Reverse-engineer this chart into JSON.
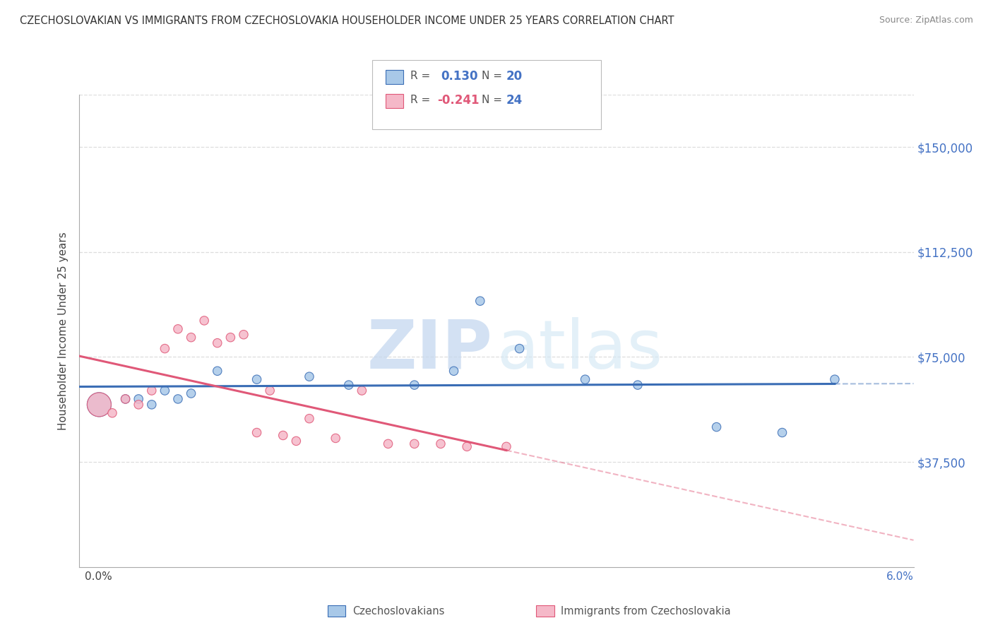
{
  "title": "CZECHOSLOVAKIAN VS IMMIGRANTS FROM CZECHOSLOVAKIA HOUSEHOLDER INCOME UNDER 25 YEARS CORRELATION CHART",
  "source": "Source: ZipAtlas.com",
  "ylabel": "Householder Income Under 25 years",
  "ytick_labels": [
    "$37,500",
    "$75,000",
    "$112,500",
    "$150,000"
  ],
  "ytick_values": [
    37500,
    75000,
    112500,
    150000
  ],
  "ymin": 0,
  "ymax": 168750,
  "xmin": -0.0005,
  "xmax": 0.063,
  "blue_R": 0.13,
  "blue_N": 20,
  "pink_R": -0.241,
  "pink_N": 24,
  "blue_scatter_x": [
    0.001,
    0.003,
    0.004,
    0.005,
    0.006,
    0.007,
    0.008,
    0.01,
    0.013,
    0.017,
    0.02,
    0.025,
    0.028,
    0.03,
    0.033,
    0.038,
    0.042,
    0.048,
    0.053,
    0.057
  ],
  "blue_scatter_y": [
    58000,
    60000,
    60000,
    58000,
    63000,
    60000,
    62000,
    70000,
    67000,
    68000,
    65000,
    65000,
    70000,
    95000,
    78000,
    67000,
    65000,
    50000,
    48000,
    67000
  ],
  "blue_scatter_size": [
    600,
    80,
    80,
    80,
    80,
    80,
    80,
    80,
    80,
    80,
    80,
    80,
    80,
    80,
    80,
    80,
    80,
    80,
    80,
    80
  ],
  "pink_scatter_x": [
    0.001,
    0.002,
    0.003,
    0.004,
    0.005,
    0.006,
    0.007,
    0.008,
    0.009,
    0.01,
    0.011,
    0.012,
    0.013,
    0.014,
    0.015,
    0.016,
    0.017,
    0.019,
    0.021,
    0.023,
    0.025,
    0.027,
    0.029,
    0.032
  ],
  "pink_scatter_y": [
    58000,
    55000,
    60000,
    58000,
    63000,
    78000,
    85000,
    82000,
    88000,
    80000,
    82000,
    83000,
    48000,
    63000,
    47000,
    45000,
    53000,
    46000,
    63000,
    44000,
    44000,
    44000,
    43000,
    43000
  ],
  "pink_scatter_size": [
    600,
    80,
    80,
    80,
    80,
    80,
    80,
    80,
    80,
    80,
    80,
    80,
    80,
    80,
    80,
    80,
    80,
    80,
    80,
    80,
    80,
    80,
    80,
    80
  ],
  "blue_color": "#a8c8e8",
  "blue_line_color": "#3a6db5",
  "pink_color": "#f5b8c8",
  "pink_line_color": "#e05878",
  "watermark_zip": "ZIP",
  "watermark_atlas": "atlas",
  "background_color": "#ffffff",
  "grid_color": "#dddddd",
  "title_color": "#333333",
  "axis_label_color": "#4472c4",
  "pink_text_color": "#e05878",
  "legend_blue_text": "0.130",
  "legend_blue_n": "20",
  "legend_pink_text": "-0.241",
  "legend_pink_n": "24"
}
